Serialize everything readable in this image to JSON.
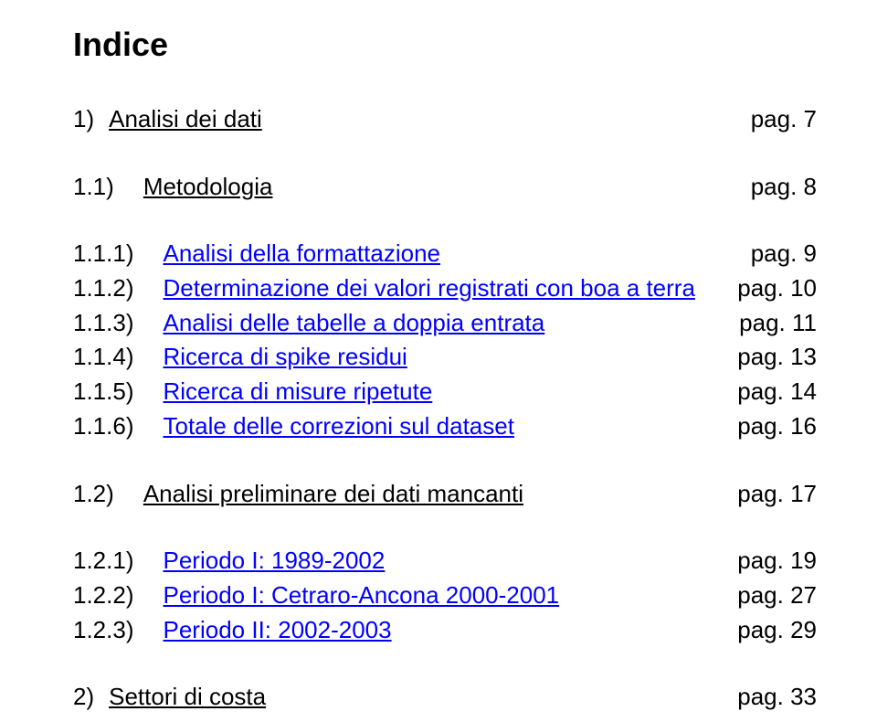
{
  "title": "Indice",
  "text_color": "#000000",
  "link_color": "#0000ff",
  "background_color": "#ffffff",
  "font_family": "Arial",
  "title_fontsize": 36,
  "row_fontsize": 26,
  "entries": [
    {
      "num": "1)",
      "label": "Analisi dei dati",
      "page": "pag. 7",
      "underline": true,
      "link": false,
      "indent": "gap-small",
      "spacer_after": true
    },
    {
      "num": "1.1)",
      "label": "Metodologia",
      "page": "pag. 8",
      "underline": true,
      "link": false,
      "indent": "gap-med",
      "spacer_after": true
    },
    {
      "num": "1.1.1)",
      "label": "Analisi della formattazione",
      "page": "pag. 9",
      "underline": true,
      "link": true,
      "indent": "gap-med",
      "spacer_after": false
    },
    {
      "num": "1.1.2)",
      "label": "Determinazione dei valori registrati con boa a terra",
      "page": "pag. 10",
      "underline": true,
      "link": true,
      "indent": "gap-med",
      "spacer_after": false
    },
    {
      "num": "1.1.3)",
      "label": "Analisi delle tabelle a doppia entrata",
      "page": "pag. 11",
      "underline": true,
      "link": true,
      "indent": "gap-med",
      "spacer_after": false
    },
    {
      "num": "1.1.4)",
      "label": "Ricerca di spike residui",
      "page": "pag. 13",
      "underline": true,
      "link": true,
      "indent": "gap-med",
      "spacer_after": false
    },
    {
      "num": "1.1.5)",
      "label": "Ricerca di misure ripetute",
      "page": "pag. 14",
      "underline": true,
      "link": true,
      "indent": "gap-med",
      "spacer_after": false
    },
    {
      "num": "1.1.6)",
      "label": "Totale delle correzioni sul dataset",
      "page": "pag. 16",
      "underline": true,
      "link": true,
      "indent": "gap-med",
      "spacer_after": true
    },
    {
      "num": "1.2)",
      "label": "Analisi preliminare dei dati mancanti",
      "page": "pag. 17",
      "underline": true,
      "link": false,
      "indent": "gap-med",
      "spacer_after": true
    },
    {
      "num": "1.2.1)",
      "label": "Periodo I: 1989-2002",
      "page": "pag. 19",
      "underline": true,
      "link": true,
      "indent": "gap-med",
      "spacer_after": false
    },
    {
      "num": "1.2.2)",
      "label": "Periodo I: Cetraro-Ancona 2000-2001",
      "page": "pag. 27",
      "underline": true,
      "link": true,
      "indent": "gap-med",
      "spacer_after": false
    },
    {
      "num": "1.2.3)",
      "label": "Periodo II: 2002-2003",
      "page": "pag. 29",
      "underline": true,
      "link": true,
      "indent": "gap-med",
      "spacer_after": true
    },
    {
      "num": "2)",
      "label": "Settori di costa",
      "page": "pag. 33",
      "underline": true,
      "link": false,
      "indent": "gap-small",
      "spacer_after": false
    }
  ]
}
